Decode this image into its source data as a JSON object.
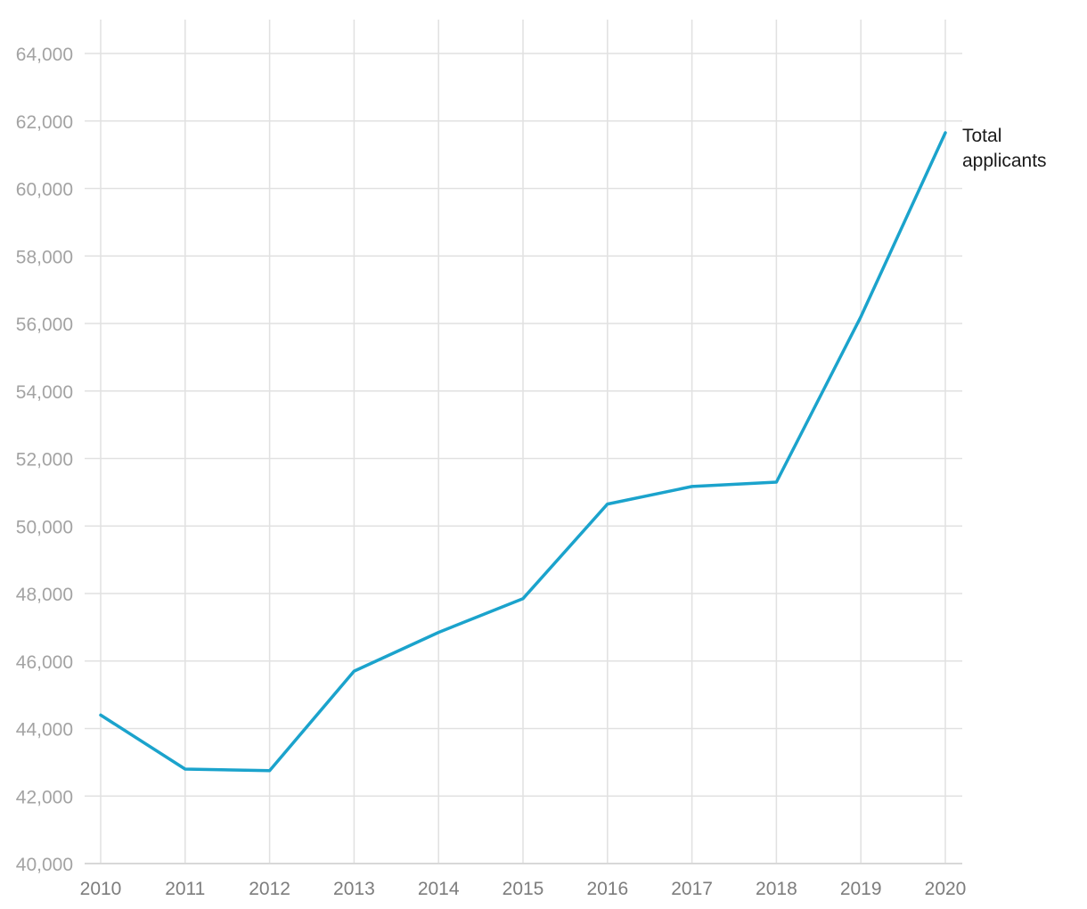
{
  "chart_data": {
    "type": "line",
    "title": "",
    "xlabel": "",
    "ylabel": "",
    "x": [
      "2010",
      "2011",
      "2012",
      "2013",
      "2014",
      "2015",
      "2016",
      "2017",
      "2018",
      "2019",
      "2020"
    ],
    "series": [
      {
        "name": "Total applicants",
        "name_lines": [
          "Total",
          "applicants"
        ],
        "color": "#1ba3cc",
        "values": [
          44400,
          42800,
          42750,
          45700,
          46850,
          47850,
          50650,
          51170,
          51300,
          56200,
          61650
        ]
      }
    ],
    "ylim": [
      40000,
      64000
    ],
    "yticks": [
      40000,
      42000,
      44000,
      46000,
      48000,
      50000,
      52000,
      54000,
      56000,
      58000,
      60000,
      62000,
      64000
    ],
    "ytick_labels": [
      "40,000",
      "42,000",
      "44,000",
      "46,000",
      "48,000",
      "50,000",
      "52,000",
      "54,000",
      "56,000",
      "58,000",
      "60,000",
      "62,000",
      "64,000"
    ],
    "grid": true,
    "legend": "direct-label-right"
  }
}
